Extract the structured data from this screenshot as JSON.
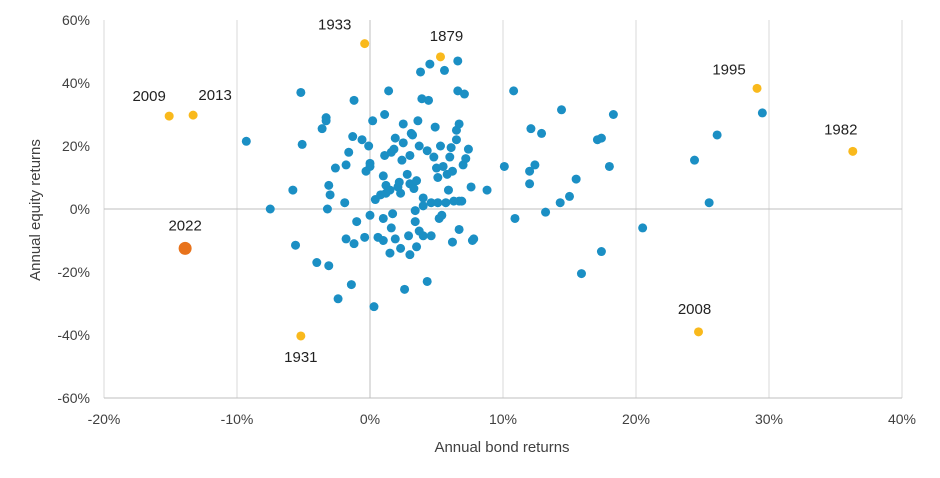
{
  "chart_data": {
    "type": "scatter",
    "title": "",
    "xlabel": "Annual bond returns",
    "ylabel": "Annual equity returns",
    "xlim": [
      -20,
      40
    ],
    "ylim": [
      -60,
      60
    ],
    "x_ticks": [
      -20,
      -10,
      0,
      10,
      20,
      30,
      40
    ],
    "y_ticks": [
      -60,
      -40,
      -20,
      0,
      20,
      40,
      60
    ],
    "x_tick_labels": [
      "-20%",
      "-10%",
      "0%",
      "10%",
      "20%",
      "30%",
      "40%"
    ],
    "y_tick_labels": [
      "-60%",
      "-40%",
      "-20%",
      "0%",
      "20%",
      "40%",
      "60%"
    ],
    "grid": "vertical",
    "colors": {
      "other": "#1b8fc4",
      "highlight": "#f9b91c",
      "current": "#e8731c"
    },
    "series": [
      {
        "role": "other",
        "points": [
          [
            -9.3,
            21.5
          ],
          [
            -7.5,
            0
          ],
          [
            -5.8,
            6
          ],
          [
            -5.6,
            -11.5
          ],
          [
            -5.2,
            37
          ],
          [
            -5.1,
            20.5
          ],
          [
            -4.0,
            -17
          ],
          [
            -3.6,
            25.5
          ],
          [
            -3.3,
            29
          ],
          [
            -3.3,
            28
          ],
          [
            -3.1,
            7.5
          ],
          [
            -3.0,
            4.5
          ],
          [
            -3.2,
            0
          ],
          [
            -3.1,
            -18
          ],
          [
            -2.6,
            13
          ],
          [
            -2.4,
            -28.5
          ],
          [
            -1.9,
            2
          ],
          [
            -1.8,
            14
          ],
          [
            -1.8,
            -9.5
          ],
          [
            -1.6,
            18
          ],
          [
            -1.4,
            -24
          ],
          [
            -1.3,
            23
          ],
          [
            -1.2,
            34.5
          ],
          [
            -1.2,
            -11
          ],
          [
            -1.0,
            -4
          ],
          [
            -0.6,
            22
          ],
          [
            -0.3,
            12
          ],
          [
            -0.4,
            -9
          ],
          [
            -0.1,
            20
          ],
          [
            0.0,
            14.5
          ],
          [
            0.0,
            13.5
          ],
          [
            0.0,
            -2
          ],
          [
            0.2,
            28
          ],
          [
            0.3,
            -31
          ],
          [
            0.4,
            3
          ],
          [
            0.6,
            -9
          ],
          [
            0.8,
            4.5
          ],
          [
            1.0,
            10.5
          ],
          [
            1.0,
            -3
          ],
          [
            1.0,
            -10
          ],
          [
            1.1,
            17
          ],
          [
            1.1,
            30
          ],
          [
            1.2,
            7.5
          ],
          [
            1.2,
            5
          ],
          [
            1.4,
            37.5
          ],
          [
            1.5,
            -14
          ],
          [
            1.5,
            6
          ],
          [
            1.6,
            -6
          ],
          [
            1.6,
            18
          ],
          [
            1.7,
            -1.5
          ],
          [
            1.8,
            19
          ],
          [
            1.9,
            -9.5
          ],
          [
            1.9,
            22.5
          ],
          [
            2.1,
            7
          ],
          [
            2.2,
            8.5
          ],
          [
            2.3,
            5
          ],
          [
            2.3,
            -12.5
          ],
          [
            2.4,
            15.5
          ],
          [
            2.5,
            21
          ],
          [
            2.5,
            27
          ],
          [
            2.6,
            -25.5
          ],
          [
            2.8,
            11
          ],
          [
            2.9,
            -8.5
          ],
          [
            3.0,
            17
          ],
          [
            3.0,
            -14.5
          ],
          [
            3.0,
            8
          ],
          [
            3.1,
            24
          ],
          [
            3.2,
            23.5
          ],
          [
            3.3,
            6.5
          ],
          [
            3.4,
            -0.5
          ],
          [
            3.4,
            -4
          ],
          [
            3.5,
            9
          ],
          [
            3.5,
            -12
          ],
          [
            3.6,
            28
          ],
          [
            3.7,
            -7
          ],
          [
            3.7,
            20
          ],
          [
            3.8,
            43.5
          ],
          [
            3.9,
            35
          ],
          [
            4.0,
            3.5
          ],
          [
            4.0,
            1
          ],
          [
            4.0,
            -8.5
          ],
          [
            4.3,
            -23
          ],
          [
            4.3,
            18.5
          ],
          [
            4.4,
            34.5
          ],
          [
            4.5,
            46
          ],
          [
            4.6,
            -8.5
          ],
          [
            4.6,
            2
          ],
          [
            4.8,
            16.5
          ],
          [
            4.9,
            26
          ],
          [
            5.0,
            13
          ],
          [
            5.1,
            10
          ],
          [
            5.1,
            2
          ],
          [
            5.2,
            -3
          ],
          [
            5.3,
            20
          ],
          [
            5.4,
            -2
          ],
          [
            5.5,
            13.5
          ],
          [
            5.6,
            44
          ],
          [
            5.7,
            2
          ],
          [
            5.8,
            11
          ],
          [
            5.9,
            6
          ],
          [
            6.0,
            16.5
          ],
          [
            6.1,
            19.5
          ],
          [
            6.2,
            12
          ],
          [
            6.2,
            -10.5
          ],
          [
            6.3,
            2.5
          ],
          [
            6.5,
            22
          ],
          [
            6.5,
            25
          ],
          [
            6.6,
            37.5
          ],
          [
            6.6,
            47
          ],
          [
            6.7,
            27
          ],
          [
            6.7,
            -6.5
          ],
          [
            6.7,
            2.5
          ],
          [
            6.9,
            2.5
          ],
          [
            7.0,
            14
          ],
          [
            7.1,
            36.5
          ],
          [
            7.2,
            16
          ],
          [
            7.4,
            19
          ],
          [
            7.6,
            7
          ],
          [
            7.7,
            -10
          ],
          [
            7.8,
            -9.5
          ],
          [
            8.8,
            6
          ],
          [
            10.1,
            13.5
          ],
          [
            10.8,
            37.5
          ],
          [
            10.9,
            -3
          ],
          [
            12.0,
            12
          ],
          [
            12.0,
            8
          ],
          [
            12.1,
            25.5
          ],
          [
            12.4,
            14
          ],
          [
            12.9,
            24
          ],
          [
            13.2,
            -1
          ],
          [
            14.3,
            2
          ],
          [
            14.4,
            31.5
          ],
          [
            15.0,
            4
          ],
          [
            15.5,
            9.5
          ],
          [
            15.9,
            -20.5
          ],
          [
            17.1,
            22
          ],
          [
            17.4,
            22.5
          ],
          [
            17.4,
            -13.5
          ],
          [
            18.0,
            13.5
          ],
          [
            18.3,
            30
          ],
          [
            20.5,
            -6
          ],
          [
            24.4,
            15.5
          ],
          [
            25.5,
            2
          ],
          [
            26.1,
            23.5
          ],
          [
            29.5,
            30.5
          ]
        ]
      },
      {
        "role": "highlight",
        "points": [
          {
            "x": -15.1,
            "y": 29.5,
            "label": "2009"
          },
          {
            "x": -13.3,
            "y": 29.8,
            "label": "2013"
          },
          {
            "x": -0.4,
            "y": 52.5,
            "label": "1933"
          },
          {
            "x": 5.3,
            "y": 48.3,
            "label": "1879"
          },
          {
            "x": -5.2,
            "y": -40.3,
            "label": "1931"
          },
          {
            "x": 29.1,
            "y": 38.3,
            "label": "1995"
          },
          {
            "x": 36.3,
            "y": 18.3,
            "label": "1982"
          },
          {
            "x": 24.7,
            "y": -39.0,
            "label": "2008"
          }
        ]
      },
      {
        "role": "current",
        "points": [
          {
            "x": -13.9,
            "y": -12.5,
            "label": "2022"
          }
        ]
      }
    ]
  }
}
